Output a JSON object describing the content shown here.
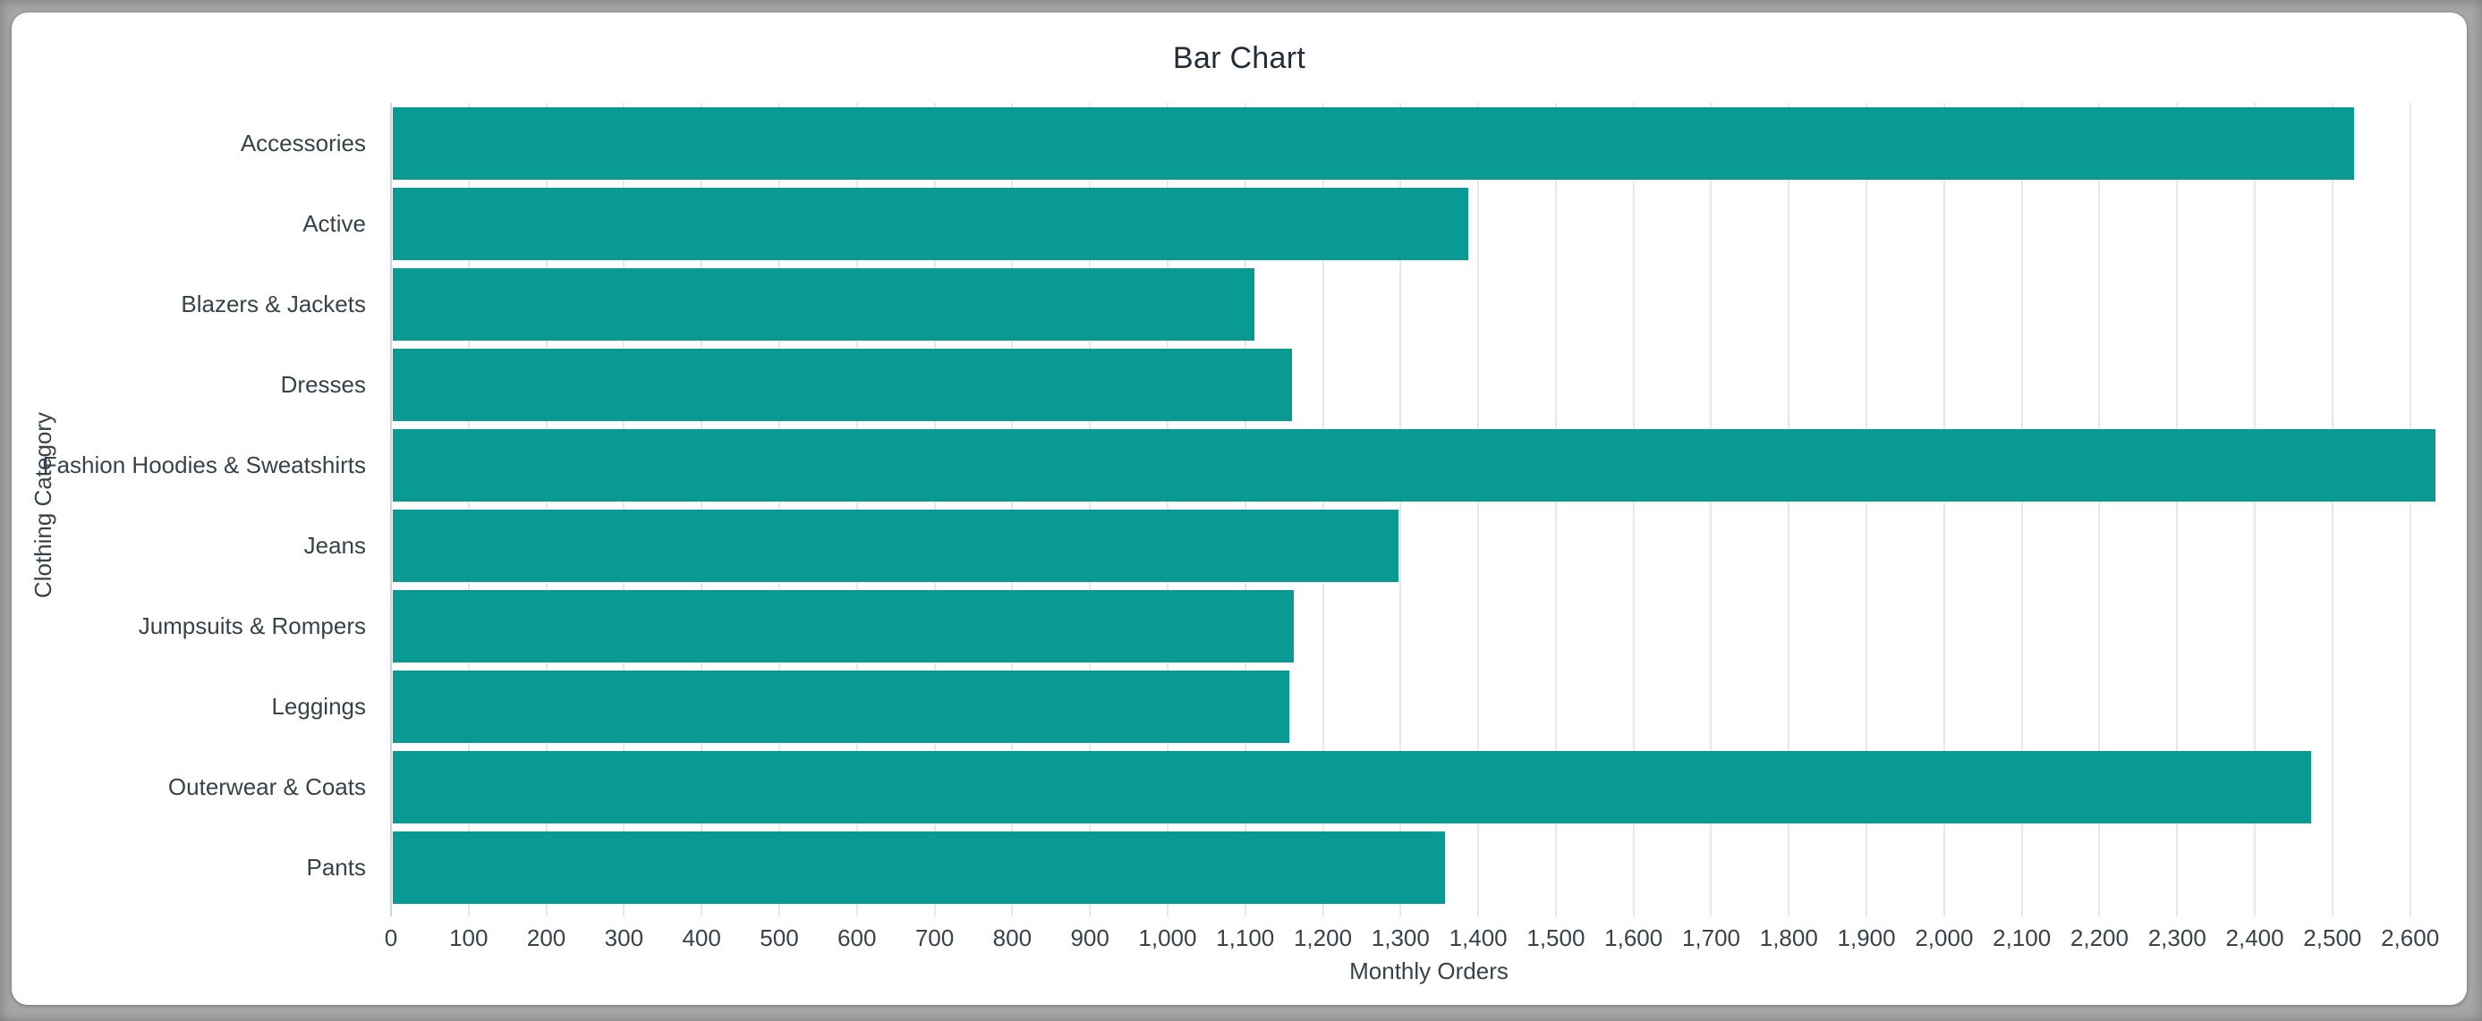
{
  "chart_data": {
    "type": "bar",
    "orientation": "horizontal",
    "title": "Bar Chart",
    "xlabel": "Monthly Orders",
    "ylabel": "Clothing Category",
    "categories": [
      "Accessories",
      "Active",
      "Blazers & Jackets",
      "Dresses",
      "Fashion Hoodies & Sweatshirts",
      "Jeans",
      "Jumpsuits & Rompers",
      "Leggings",
      "Outerwear & Coats",
      "Pants"
    ],
    "values": [
      2525,
      1385,
      1110,
      1158,
      2630,
      1295,
      1160,
      1155,
      2470,
      1355
    ],
    "xlim": [
      0,
      2673
    ],
    "x_tick_step": 100,
    "x_tick_labels": [
      "0",
      "100",
      "200",
      "300",
      "400",
      "500",
      "600",
      "700",
      "800",
      "900",
      "1,000",
      "1,100",
      "1,200",
      "1,300",
      "1,400",
      "1,500",
      "1,600",
      "1,700",
      "1,800",
      "1,900",
      "2,000",
      "2,100",
      "2,200",
      "2,300",
      "2,400",
      "2,500",
      "2,600"
    ],
    "grid": true,
    "legend_position": "none"
  },
  "colors": {
    "frame_background": "#a7a7a7",
    "card_background": "#ffffff",
    "bar": "#0a9a94",
    "gridline": "#e8e8e8",
    "axis_line": "#ccd4dd",
    "label_text": "#37424b",
    "title_text": "#252e38"
  }
}
